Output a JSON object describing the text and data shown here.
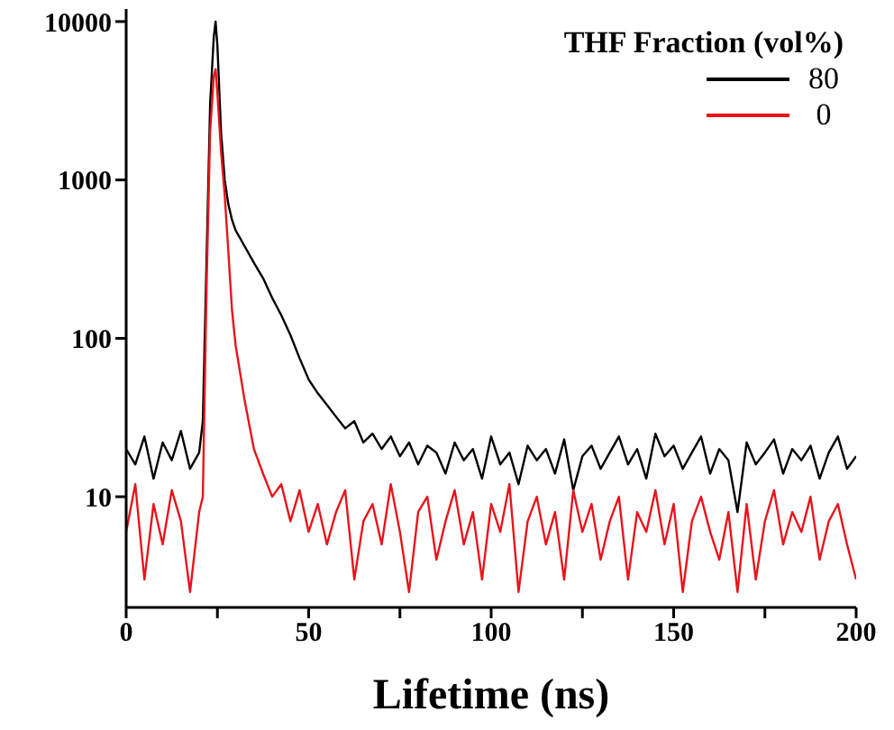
{
  "chart_data": {
    "type": "line",
    "xlabel": "Lifetime (ns)",
    "legend_title": "THF Fraction (vol%)",
    "legend": "top right",
    "log": "y",
    "grid": false,
    "marker": "none",
    "line_style": "solid",
    "xlim": [
      0,
      200
    ],
    "xticks": [
      0,
      {
        "value": 25,
        "label": null
      },
      50,
      {
        "value": 75,
        "label": null
      },
      100,
      {
        "value": 125,
        "label": null
      },
      150,
      {
        "value": 175,
        "label": null
      },
      200
    ],
    "ylim": [
      2,
      12000
    ],
    "yticks": [
      10,
      100,
      1000,
      10000
    ],
    "x": [
      0,
      2.5,
      5,
      7.5,
      10,
      12.5,
      15,
      17.5,
      20,
      21,
      22,
      23,
      24,
      24.5,
      25,
      26,
      27,
      28,
      29,
      30,
      32.5,
      35,
      37.5,
      40,
      42.5,
      45,
      47.5,
      50,
      52.5,
      55,
      57.5,
      60,
      62.5,
      65,
      67.5,
      70,
      72.5,
      75,
      77.5,
      80,
      82.5,
      85,
      87.5,
      90,
      92.5,
      95,
      97.5,
      100,
      102.5,
      105,
      107.5,
      110,
      112.5,
      115,
      117.5,
      120,
      122.5,
      125,
      127.5,
      130,
      132.5,
      135,
      137.5,
      140,
      142.5,
      145,
      147.5,
      150,
      152.5,
      155,
      157.5,
      160,
      162.5,
      165,
      167.5,
      170,
      172.5,
      175,
      177.5,
      180,
      182.5,
      185,
      187.5,
      190,
      192.5,
      195,
      197.5,
      200
    ],
    "series": [
      {
        "name": "80",
        "color": "#000000",
        "values": [
          20,
          16,
          24,
          13,
          22,
          17,
          26,
          15,
          19,
          30,
          300,
          3000,
          8000,
          10000,
          7000,
          2000,
          1000,
          700,
          560,
          480,
          380,
          300,
          240,
          180,
          140,
          105,
          75,
          55,
          45,
          38,
          32,
          27,
          30,
          22,
          25,
          20,
          24,
          18,
          22,
          16,
          21,
          19,
          14,
          22,
          17,
          20,
          13,
          24,
          16,
          19,
          12,
          21,
          17,
          20,
          14,
          23,
          11,
          18,
          21,
          15,
          19,
          24,
          16,
          20,
          13,
          25,
          18,
          21,
          15,
          19,
          24,
          14,
          20,
          17,
          8,
          22,
          16,
          19,
          23,
          14,
          20,
          17,
          21,
          13,
          19,
          24,
          15,
          18
        ]
      },
      {
        "name": "0",
        "color": "#e8141c",
        "values": [
          6,
          12,
          3,
          9,
          5,
          11,
          7,
          2.5,
          8,
          10,
          200,
          2000,
          4500,
          5000,
          3500,
          1500,
          800,
          350,
          150,
          90,
          40,
          20,
          14,
          10,
          12,
          7,
          11,
          6,
          9,
          5,
          8,
          11,
          3,
          7,
          9,
          5,
          12,
          6,
          2.5,
          8,
          10,
          4,
          7,
          11,
          5,
          8,
          3,
          9,
          6,
          12,
          2.5,
          7,
          10,
          5,
          8,
          3,
          11,
          6,
          9,
          4,
          7,
          10,
          3,
          8,
          6,
          11,
          5,
          9,
          2.5,
          7,
          10,
          6,
          4,
          8,
          2.5,
          9,
          3,
          7,
          11,
          5,
          8,
          6,
          10,
          4,
          7,
          9,
          5,
          3
        ]
      }
    ]
  }
}
